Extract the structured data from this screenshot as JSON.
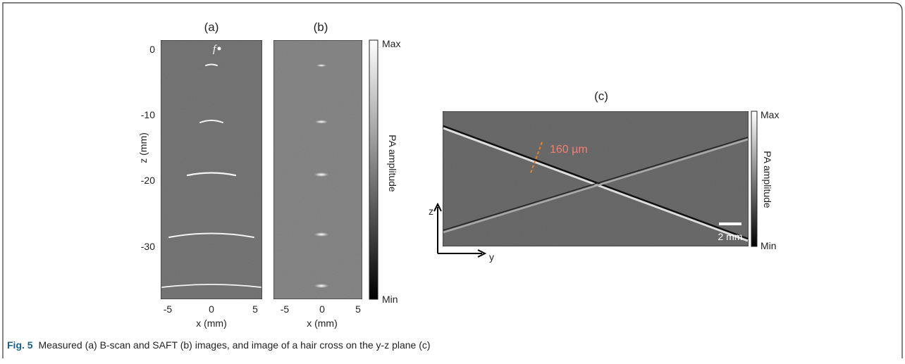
{
  "panels": [
    {
      "label": "(a)",
      "xticks": [
        "-5",
        "0",
        "5"
      ],
      "yticks": [
        "0",
        "-10",
        "-20",
        "-30"
      ],
      "xlabel": "x (mm)",
      "ylabel": "z (mm)",
      "annotation": "f"
    },
    {
      "label": "(b)",
      "xticks": [
        "-5",
        "0",
        "5"
      ],
      "xlabel": "x (mm)"
    },
    {
      "label": "(c)",
      "annotation": "160 µm",
      "scale_bar": "2 mm",
      "axis_z": "z",
      "axis_y": "y"
    }
  ],
  "colorbars": [
    {
      "max": "Max",
      "min": "Min",
      "label": "PA amplitude"
    },
    {
      "max": "Max",
      "min": "Min",
      "label": "PA amplitude"
    }
  ],
  "caption": {
    "label": "Fig. 5",
    "text": "Measured (a) B-scan and SAFT (b) images, and image of a hair cross on the y-z plane (c)"
  }
}
